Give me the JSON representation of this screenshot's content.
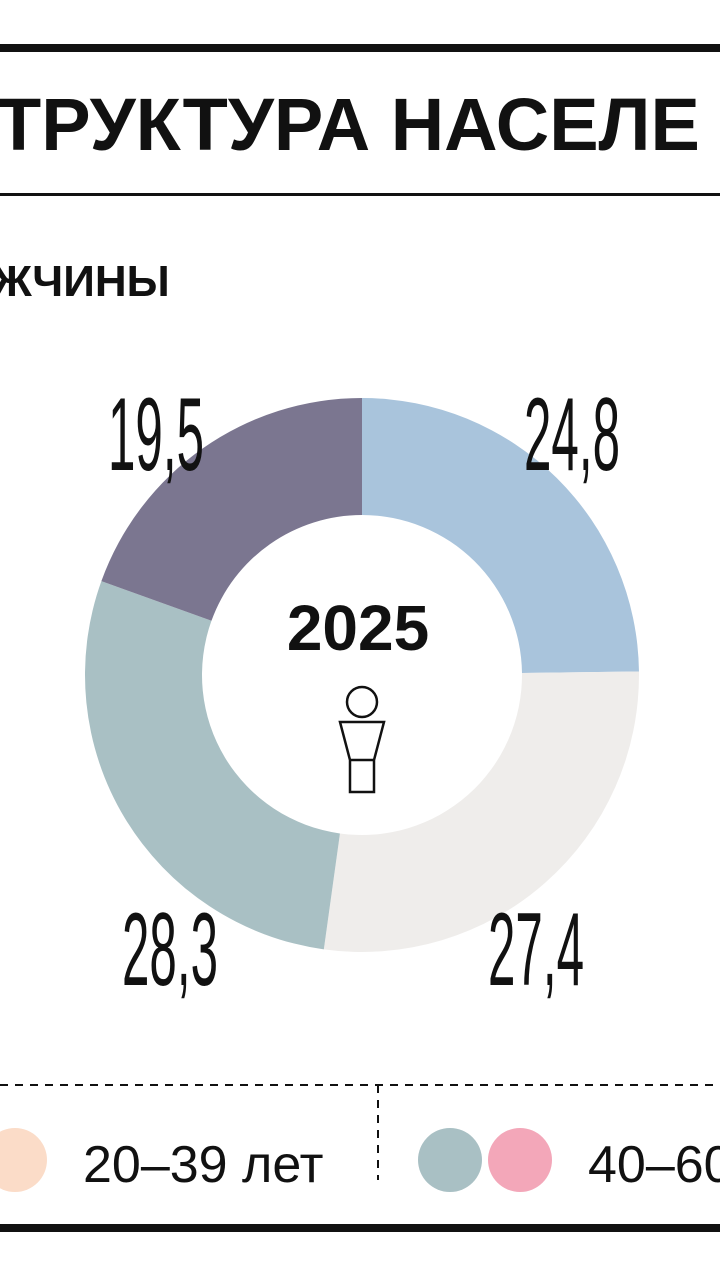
{
  "chart_data": {
    "type": "pie",
    "title": "ТРУКТУРА НАСЕЛЕ",
    "subtitle": "ЖЧИНЫ",
    "center_label": "2025",
    "values": [
      24.8,
      27.4,
      28.3,
      19.5
    ],
    "value_labels": [
      "24,8",
      "27,4",
      "28,3",
      "19,5"
    ],
    "colors": [
      "#a9c4dc",
      "#efedeb",
      "#a9c0c4",
      "#7b7690"
    ],
    "legend": [
      {
        "label": "20–39 лет",
        "colors": [
          "#fbdcc8"
        ]
      },
      {
        "label": "40–60",
        "colors": [
          "#a9c0c4",
          "#f3a7b9"
        ]
      }
    ]
  }
}
